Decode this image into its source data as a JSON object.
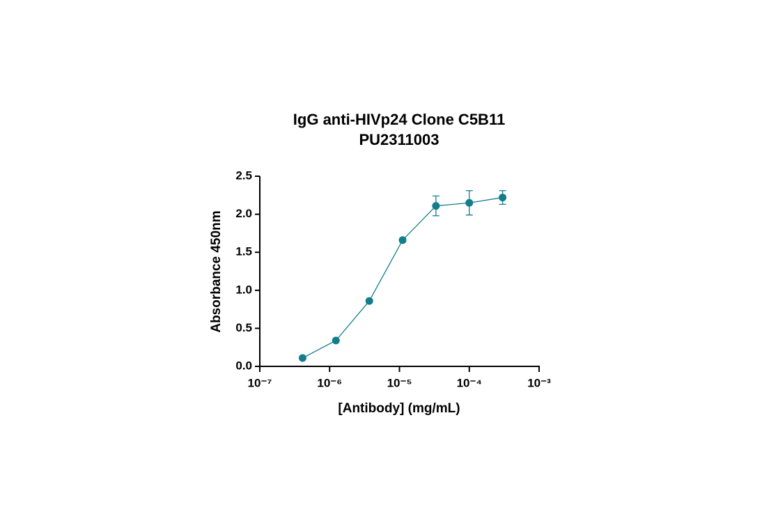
{
  "chart_data": {
    "type": "scatter",
    "title": "IgG anti-HIVp24 Clone C5B11",
    "subtitle": "PU2311003",
    "x_label": "[Antibody] (mg/mL)",
    "y_label": "Absorbance 450nm",
    "x": [
      4.1e-07,
      1.23e-06,
      3.7e-06,
      1.11e-05,
      3.33e-05,
      0.0001,
      0.0003
    ],
    "series": [
      {
        "color": "#137d8c",
        "values": [
          0.11,
          0.34,
          0.86,
          1.66,
          2.11,
          2.15,
          2.22
        ],
        "errors": [
          0.01,
          0.01,
          0.02,
          0.02,
          0.13,
          0.16,
          0.09
        ]
      }
    ],
    "xscale": "log",
    "xlim": [
      1e-07,
      0.001
    ],
    "xticks": [
      {
        "value": 1e-07,
        "label": "10⁻⁷"
      },
      {
        "value": 1e-06,
        "label": "10⁻⁶"
      },
      {
        "value": 1e-05,
        "label": "10⁻⁵"
      },
      {
        "value": 0.0001,
        "label": "10⁻⁴"
      },
      {
        "value": 0.001,
        "label": "10⁻³"
      }
    ],
    "ylim": [
      0,
      2.5
    ],
    "yticks": [
      {
        "value": 0,
        "label": "0.0"
      },
      0.5,
      {
        "value": 1,
        "label": "1.0"
      },
      1.5,
      {
        "value": 2,
        "label": "2.0"
      },
      2.5
    ]
  }
}
